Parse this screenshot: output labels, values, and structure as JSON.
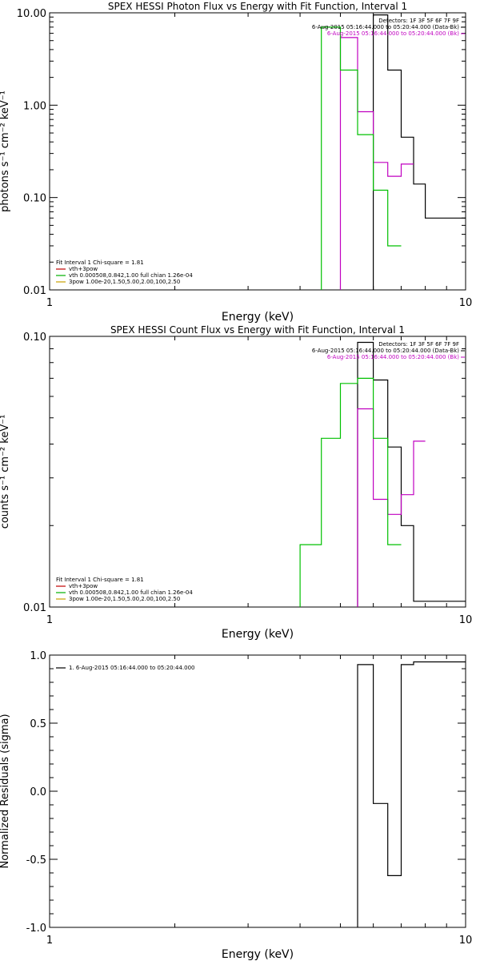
{
  "chart_data": [
    {
      "type": "line",
      "title": "SPEX HESSI Photon Flux vs Energy with Fit Function, Interval 1",
      "xlabel": "Energy (keV)",
      "ylabel": "photons s⁻¹ cm⁻² keV⁻¹",
      "xscale": "log",
      "yscale": "log",
      "xlim": [
        1,
        10
      ],
      "ylim": [
        0.01,
        10
      ],
      "xticks": [
        {
          "v": 1,
          "label": "1"
        },
        {
          "v": 10,
          "label": "10"
        }
      ],
      "yticks": [
        {
          "v": 0.01,
          "label": "0.01"
        },
        {
          "v": 0.1,
          "label": "0.10"
        },
        {
          "v": 1,
          "label": "1.00"
        },
        {
          "v": 10,
          "label": "10.00"
        }
      ],
      "annotations": [
        {
          "text": "Detectors: 1F 3F 5F 6F 7F 9F",
          "color": "#000000"
        },
        {
          "text": "6-Aug-2015 05:16:44.000 to 05:20:44.000 (Data-Bk)",
          "color": "#000000"
        },
        {
          "text": "6-Aug-2015 05:16:44.000 to 05:20:44.000 (Bk)",
          "color": "#c000c0"
        }
      ],
      "legend_placement": "bottom-left",
      "legend": [
        {
          "text": "Fit Interval 1   Chi-square = 1.81",
          "color": null
        },
        {
          "text": "vth+3pow",
          "color": "#c00000"
        },
        {
          "text": "vth 0.000508,0.842,1.00  full chian 1.26e-04",
          "color": "#00b000"
        },
        {
          "text": "3pow 1.00e-20,1.50,5.00,2.00,100,2.50",
          "color": "#c8a000"
        }
      ],
      "series": [
        {
          "style": "step",
          "color": "#000000",
          "edges": [
            4.5,
            5.0,
            5.5,
            6.0,
            6.5,
            7.0,
            7.5,
            8.0,
            8.5,
            9.0,
            9.5,
            10.0
          ],
          "values": [
            null,
            null,
            null,
            9.5,
            2.4,
            0.45,
            0.14,
            0.06,
            0.06,
            0.06,
            0.06
          ]
        },
        {
          "style": "step",
          "color": "#c000c0",
          "edges": [
            4.5,
            5.0,
            5.5,
            6.0,
            6.5,
            7.0,
            7.5,
            8.0,
            8.5,
            9.0,
            9.5,
            10.0
          ],
          "values": [
            null,
            5.4,
            0.85,
            0.24,
            0.17,
            0.23,
            null,
            null,
            null,
            null,
            null
          ]
        },
        {
          "style": "step",
          "color": "#00c000",
          "edges": [
            3.0,
            3.5,
            4.0,
            4.5,
            5.0,
            5.5,
            6.0,
            6.5,
            7.0,
            7.5,
            8.0,
            8.5,
            9.0,
            9.5,
            10.0
          ],
          "values": [
            null,
            null,
            null,
            7.0,
            2.4,
            0.48,
            0.12,
            0.03,
            null,
            null,
            null,
            null,
            null,
            null
          ]
        }
      ]
    },
    {
      "type": "line",
      "title": "SPEX HESSI Count Flux vs Energy with Fit Function, Interval 1",
      "xlabel": "Energy (keV)",
      "ylabel": "counts s⁻¹ cm⁻² keV⁻¹",
      "xscale": "log",
      "yscale": "log",
      "xlim": [
        1,
        10
      ],
      "ylim": [
        0.01,
        0.1
      ],
      "xticks": [
        {
          "v": 1,
          "label": "1"
        },
        {
          "v": 10,
          "label": "10"
        }
      ],
      "yticks": [
        {
          "v": 0.01,
          "label": "0.01"
        },
        {
          "v": 0.1,
          "label": "0.10"
        }
      ],
      "annotations": [
        {
          "text": "Detectors: 1F 3F 5F 6F 7F 9F",
          "color": "#000000"
        },
        {
          "text": "6-Aug-2015 05:16:44.000 to 05:20:44.000 (Data-Bk)",
          "color": "#000000"
        },
        {
          "text": "6-Aug-2015 05:16:44.000 to 05:20:44.000 (Bk)",
          "color": "#c000c0"
        }
      ],
      "legend_placement": "bottom-left",
      "legend": [
        {
          "text": "Fit Interval 1   Chi-square = 1.81",
          "color": null
        },
        {
          "text": "vth+3pow",
          "color": "#c00000"
        },
        {
          "text": "vth 0.000508,0.842,1.00  full chian 1.26e-04",
          "color": "#00b000"
        },
        {
          "text": "3pow 1.00e-20,1.50,5.00,2.00,100,2.50",
          "color": "#c8a000"
        }
      ],
      "series": [
        {
          "style": "step",
          "color": "#000000",
          "edges": [
            5.5,
            6.0,
            6.5,
            7.0,
            7.5,
            8.0,
            8.5,
            9.0,
            9.5,
            10.0
          ],
          "values": [
            0.095,
            0.069,
            0.039,
            0.02,
            0.0105,
            0.0105,
            0.0105,
            0.0105,
            0.0105
          ]
        },
        {
          "style": "step",
          "color": "#c000c0",
          "edges": [
            5.5,
            6.0,
            6.5,
            7.0,
            7.5,
            8.0,
            8.5,
            9.0,
            9.5,
            10.0
          ],
          "values": [
            0.054,
            0.025,
            0.022,
            0.026,
            0.041,
            null,
            null,
            null,
            null
          ]
        },
        {
          "style": "step",
          "color": "#00c000",
          "edges": [
            3.5,
            4.0,
            4.5,
            5.0,
            5.5,
            6.0,
            6.5,
            7.0,
            7.5,
            8.0,
            8.5,
            9.0,
            9.5,
            10.0
          ],
          "values": [
            null,
            0.017,
            0.042,
            0.067,
            0.07,
            0.042,
            0.017,
            null,
            null,
            null,
            null,
            null,
            null
          ]
        }
      ]
    },
    {
      "type": "line",
      "title": "",
      "xlabel": "Energy (keV)",
      "ylabel": "Normalized Residuals (sigma)",
      "xscale": "log",
      "yscale": "linear",
      "xlim": [
        1,
        10
      ],
      "ylim": [
        -1.0,
        1.0
      ],
      "xticks": [
        {
          "v": 1,
          "label": "1"
        },
        {
          "v": 10,
          "label": "10"
        }
      ],
      "yticks": [
        {
          "v": -1.0,
          "label": "-1.0"
        },
        {
          "v": -0.5,
          "label": "-0.5"
        },
        {
          "v": 0.0,
          "label": "0.0"
        },
        {
          "v": 0.5,
          "label": "0.5"
        },
        {
          "v": 1.0,
          "label": "1.0"
        }
      ],
      "annotations": [],
      "legend_placement": "top-left",
      "legend": [
        {
          "text": "1.  6-Aug-2015 05:16:44.000 to 05:20:44.000",
          "color": "#000000"
        }
      ],
      "series": [
        {
          "style": "step",
          "color": "#000000",
          "edges": [
            5.5,
            6.0,
            6.5,
            7.0,
            7.5,
            8.0,
            8.5,
            9.0,
            9.5,
            10.0
          ],
          "values": [
            0.93,
            -0.09,
            -0.62,
            0.93,
            0.95,
            0.95,
            0.95,
            0.95,
            0.95
          ]
        }
      ]
    }
  ]
}
